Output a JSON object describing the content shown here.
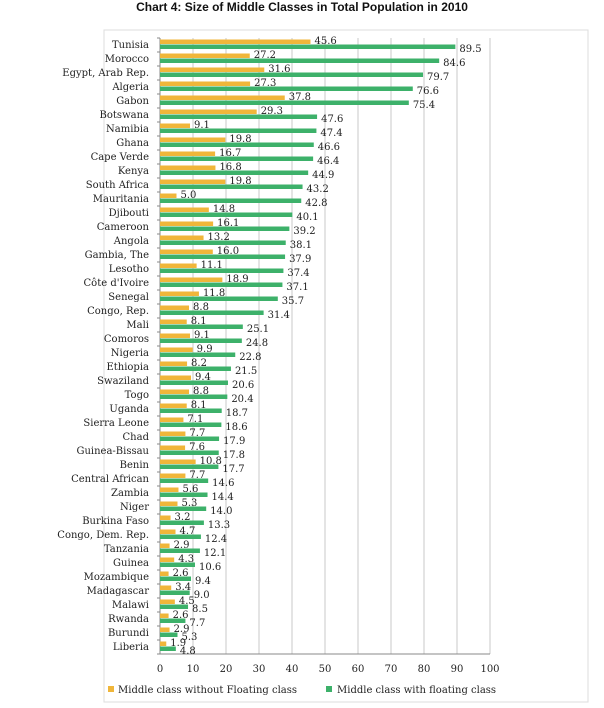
{
  "chart_data": {
    "type": "bar",
    "orientation": "horizontal",
    "title": "Chart 4: Size of Middle Classes in Total Population in 2010",
    "xlabel": "",
    "ylabel": "",
    "xlim": [
      0,
      100
    ],
    "xticks": [
      0,
      10,
      20,
      30,
      40,
      50,
      60,
      70,
      80,
      90,
      100
    ],
    "grid": true,
    "legend_position": "bottom",
    "colors": {
      "without_floating": "#F0B63A",
      "with_floating": "#3DB16A"
    },
    "categories": [
      "Tunisia",
      "Morocco",
      "Egypt, Arab Rep.",
      "Algeria",
      "Gabon",
      "Botswana",
      "Namibia",
      "Ghana",
      "Cape Verde",
      "Kenya",
      "South Africa",
      "Mauritania",
      "Djibouti",
      "Cameroon",
      "Angola",
      "Gambia, The",
      "Lesotho",
      "Côte d'Ivoire",
      "Senegal",
      "Congo, Rep.",
      "Mali",
      "Comoros",
      "Nigeria",
      "Ethiopia",
      "Swaziland",
      "Togo",
      "Uganda",
      "Sierra Leone",
      "Chad",
      "Guinea-Bissau",
      "Benin",
      "Central African",
      "Zambia",
      "Niger",
      "Burkina Faso",
      "Congo, Dem. Rep.",
      "Tanzania",
      "Guinea",
      "Mozambique",
      "Madagascar",
      "Malawi",
      "Rwanda",
      "Burundi",
      "Liberia"
    ],
    "series": [
      {
        "name": "Middle class without Floating class",
        "values": [
          45.6,
          27.2,
          31.6,
          27.3,
          37.8,
          29.3,
          9.1,
          19.8,
          16.7,
          16.8,
          19.8,
          5.0,
          14.8,
          16.1,
          13.2,
          16.0,
          11.1,
          18.9,
          11.8,
          8.8,
          8.1,
          9.1,
          9.9,
          8.2,
          9.4,
          8.8,
          8.1,
          7.1,
          7.7,
          7.6,
          10.8,
          7.7,
          5.6,
          5.3,
          3.2,
          4.7,
          2.9,
          4.3,
          2.6,
          3.4,
          4.5,
          2.6,
          2.9,
          1.9
        ]
      },
      {
        "name": "Middle class with floating class",
        "values": [
          89.5,
          84.6,
          79.7,
          76.6,
          75.4,
          47.6,
          47.4,
          46.6,
          46.4,
          44.9,
          43.2,
          42.8,
          40.1,
          39.2,
          38.1,
          37.9,
          37.4,
          37.1,
          35.7,
          31.4,
          25.1,
          24.8,
          22.8,
          21.5,
          20.6,
          20.4,
          18.7,
          18.6,
          17.9,
          17.8,
          17.7,
          14.6,
          14.4,
          14.0,
          13.3,
          12.4,
          12.1,
          10.6,
          9.4,
          9.0,
          8.5,
          7.7,
          5.3,
          4.8
        ]
      }
    ]
  }
}
